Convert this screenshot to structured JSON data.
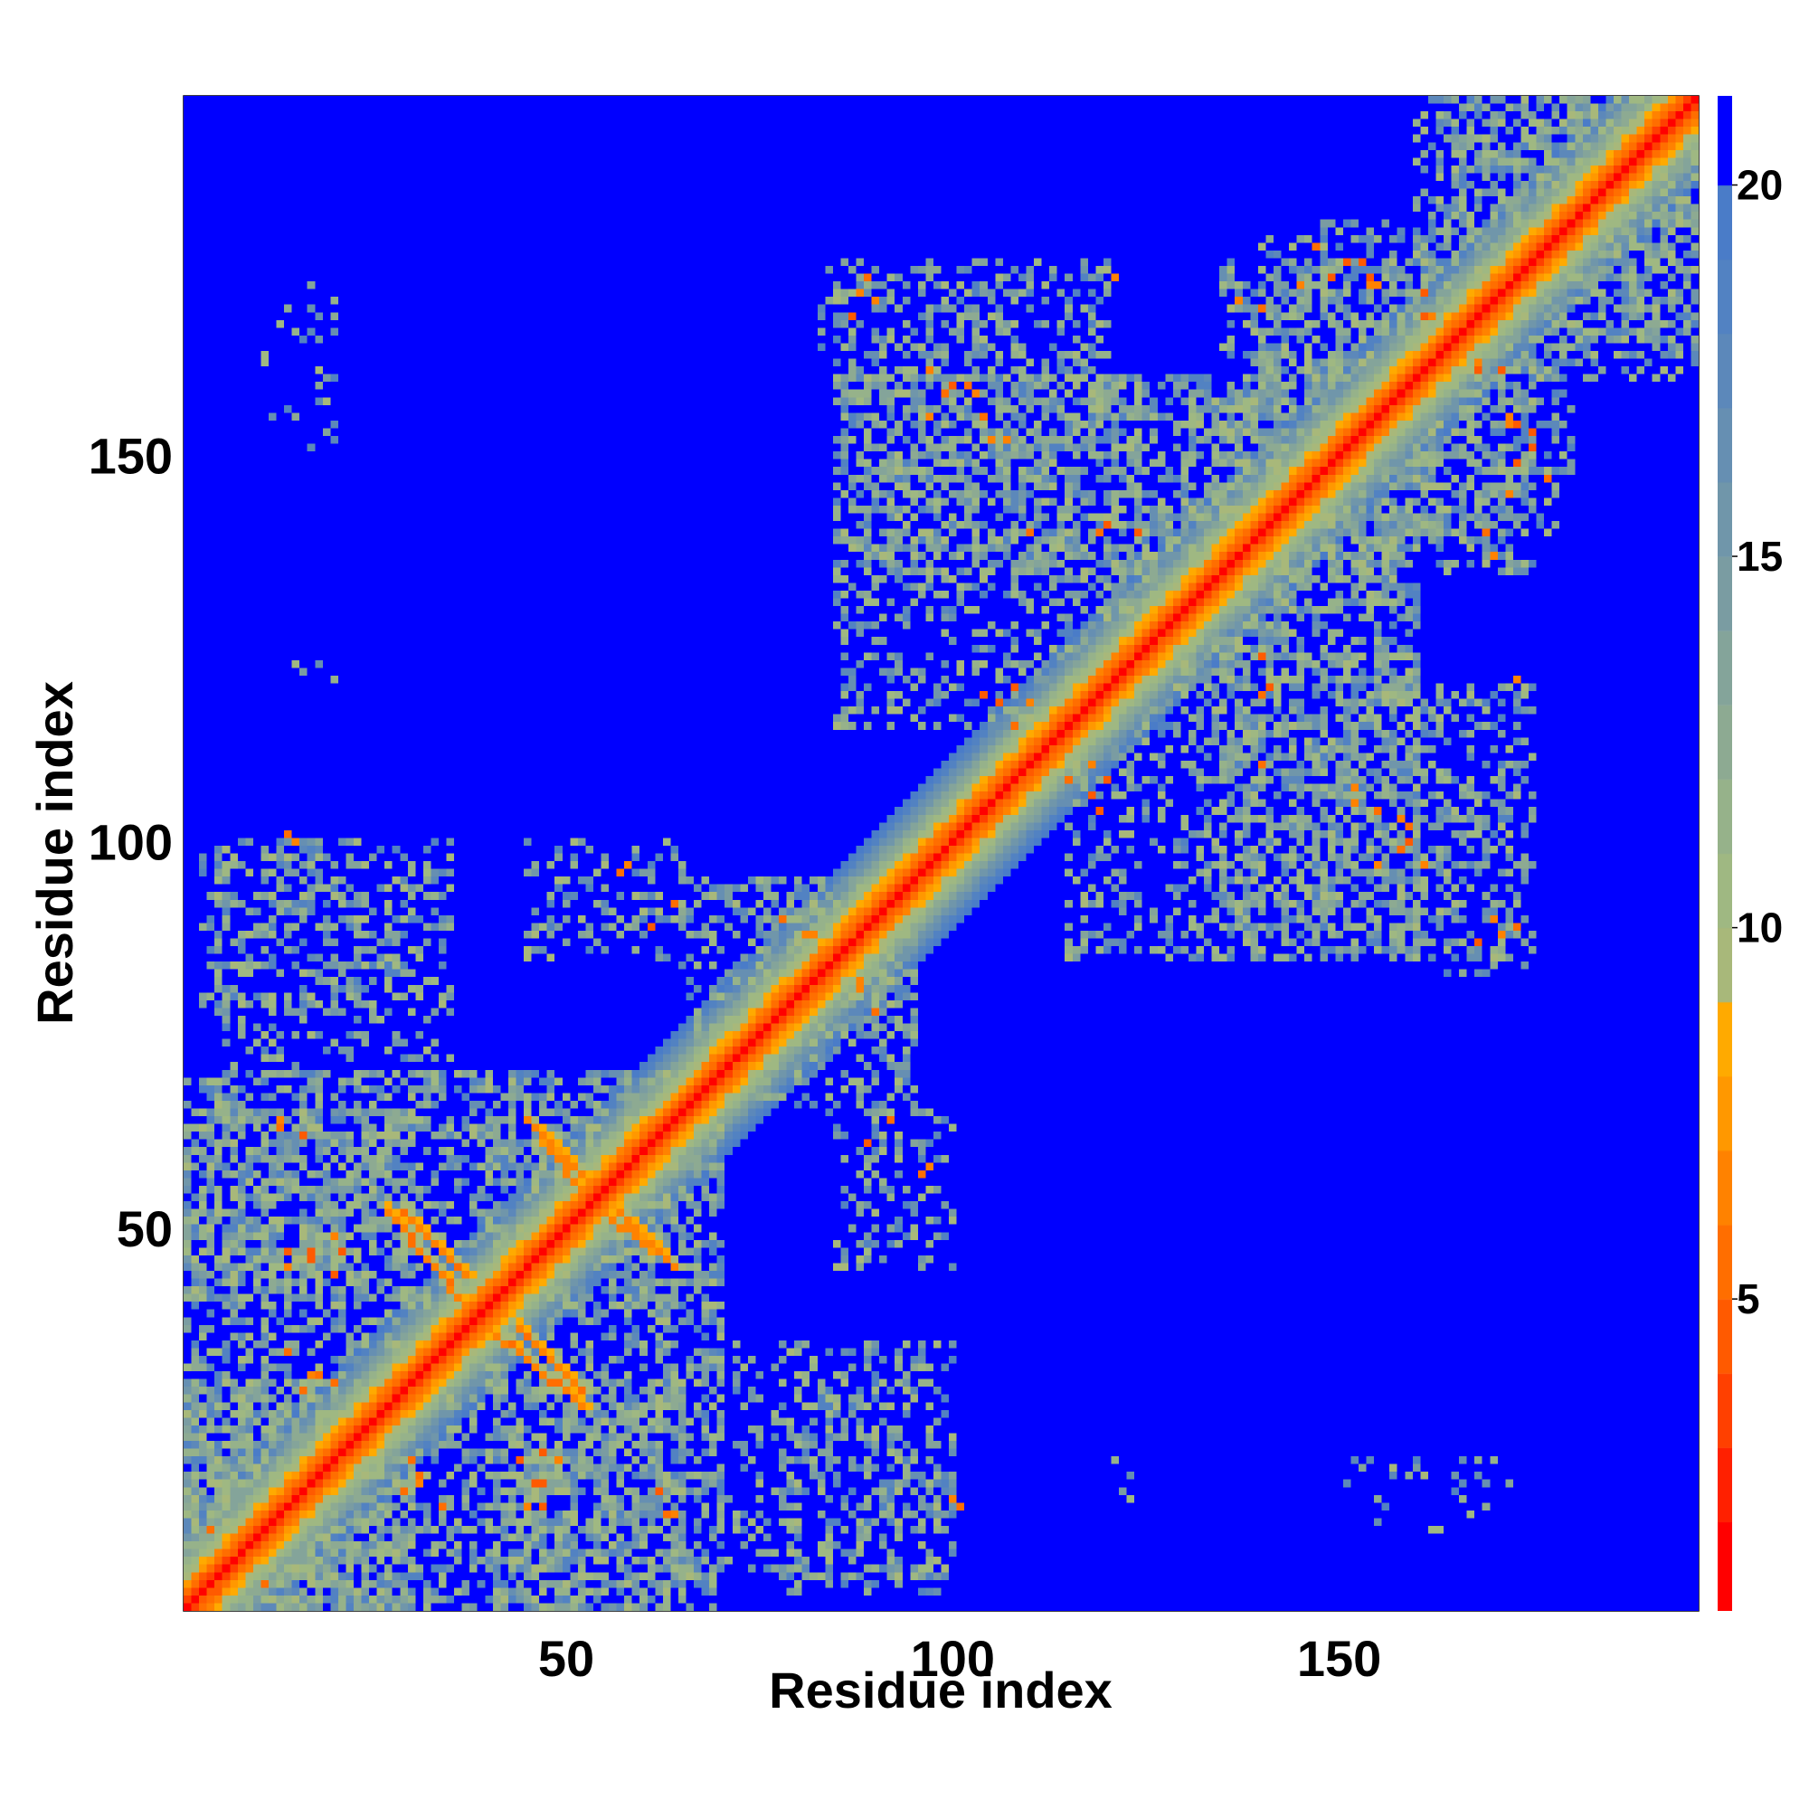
{
  "chart_data": {
    "type": "heatmap",
    "title": "",
    "xlabel": "Residue index",
    "ylabel": "Residue index",
    "xlim": [
      1,
      196
    ],
    "ylim": [
      1,
      196
    ],
    "x_ticks": [
      50,
      100,
      150
    ],
    "y_ticks": [
      50,
      100,
      150
    ],
    "n_residues": 196,
    "colorbar": {
      "range": [
        0.8,
        21.2
      ],
      "ticks": [
        5,
        10,
        15,
        20
      ],
      "saturated_above": 20,
      "bands": [
        {
          "from": 0.8,
          "to": 2.0,
          "color": "#ff0000"
        },
        {
          "from": 2.0,
          "to": 3.0,
          "color": "#ff2000"
        },
        {
          "from": 3.0,
          "to": 4.0,
          "color": "#ff4000"
        },
        {
          "from": 4.0,
          "to": 5.0,
          "color": "#ff5a00"
        },
        {
          "from": 5.0,
          "to": 6.0,
          "color": "#ff6e00"
        },
        {
          "from": 6.0,
          "to": 7.0,
          "color": "#ff8200"
        },
        {
          "from": 7.0,
          "to": 8.0,
          "color": "#ff9800"
        },
        {
          "from": 8.0,
          "to": 9.0,
          "color": "#ffaa00"
        },
        {
          "from": 9.0,
          "to": 10.0,
          "color": "#a8b87a"
        },
        {
          "from": 10.0,
          "to": 11.0,
          "color": "#9fb882"
        },
        {
          "from": 11.0,
          "to": 12.0,
          "color": "#96b28a"
        },
        {
          "from": 12.0,
          "to": 13.0,
          "color": "#8daa92"
        },
        {
          "from": 13.0,
          "to": 14.0,
          "color": "#84a49a"
        },
        {
          "from": 14.0,
          "to": 15.0,
          "color": "#7a9ca2"
        },
        {
          "from": 15.0,
          "to": 16.0,
          "color": "#7096aa"
        },
        {
          "from": 16.0,
          "to": 17.0,
          "color": "#668fb2"
        },
        {
          "from": 17.0,
          "to": 18.0,
          "color": "#5c88ba"
        },
        {
          "from": 18.0,
          "to": 19.0,
          "color": "#5282c2"
        },
        {
          "from": 19.0,
          "to": 20.0,
          "color": "#4a7cc8"
        },
        {
          "from": 20.0,
          "to": 21.2,
          "color": "#0000ff"
        }
      ]
    },
    "diagonal_profile": [
      {
        "offset": 0,
        "value": 1.0
      },
      {
        "offset": 1,
        "value": 3.8
      },
      {
        "offset": 2,
        "value": 5.6
      },
      {
        "offset": 3,
        "value": 7.0
      },
      {
        "offset": 4,
        "value": 9.0
      },
      {
        "offset": 5,
        "value": 10.5
      },
      {
        "offset": 6,
        "value": 12.0
      },
      {
        "offset": 7,
        "value": 13.6
      },
      {
        "offset": 8,
        "value": 15.2
      },
      {
        "offset": 9,
        "value": 16.8
      },
      {
        "offset": 10,
        "value": 18.4
      },
      {
        "offset": 11,
        "value": 19.6
      }
    ],
    "contact_regions": [
      {
        "x": [
          1,
          30
        ],
        "y": [
          1,
          30
        ],
        "density": 0.55
      },
      {
        "x": [
          1,
          40
        ],
        "y": [
          40,
          70
        ],
        "density": 0.45
      },
      {
        "x": [
          30,
          65
        ],
        "y": [
          1,
          30
        ],
        "density": 0.45
      },
      {
        "x": [
          40,
          70
        ],
        "y": [
          40,
          70
        ],
        "density": 0.4
      },
      {
        "x": [
          3,
          25
        ],
        "y": [
          75,
          100
        ],
        "density": 0.25
      },
      {
        "x": [
          27,
          35
        ],
        "y": [
          80,
          97
        ],
        "density": 0.25
      },
      {
        "x": [
          45,
          63
        ],
        "y": [
          88,
          100
        ],
        "density": 0.15
      },
      {
        "x": [
          70,
          100
        ],
        "y": [
          5,
          35
        ],
        "density": 0.25
      },
      {
        "x": [
          85,
          100
        ],
        "y": [
          45,
          65
        ],
        "density": 0.15
      },
      {
        "x": [
          65,
          95
        ],
        "y": [
          75,
          95
        ],
        "density": 0.35
      },
      {
        "x": [
          85,
          115
        ],
        "y": [
          115,
          160
        ],
        "density": 0.35
      },
      {
        "x": [
          115,
          145
        ],
        "y": [
          120,
          160
        ],
        "density": 0.35
      },
      {
        "x": [
          83,
          120
        ],
        "y": [
          160,
          175
        ],
        "density": 0.25
      },
      {
        "x": [
          135,
          160
        ],
        "y": [
          130,
          175
        ],
        "density": 0.4
      },
      {
        "x": [
          135,
          160
        ],
        "y": [
          85,
          125
        ],
        "density": 0.35
      },
      {
        "x": [
          160,
          175
        ],
        "y": [
          85,
          120
        ],
        "density": 0.25
      },
      {
        "x": [
          160,
          180
        ],
        "y": [
          140,
          165
        ],
        "density": 0.35
      },
      {
        "x": [
          160,
          196
        ],
        "y": [
          165,
          196
        ],
        "density": 0.45
      },
      {
        "x": [
          10,
          20
        ],
        "y": [
          155,
          172
        ],
        "density": 0.1
      },
      {
        "x": [
          150,
          170
        ],
        "y": [
          15,
          20
        ],
        "density": 0.1
      },
      {
        "x": [
          120,
          125
        ],
        "y": [
          15,
          20
        ],
        "density": 0.1
      }
    ],
    "antiparallel_strands": [
      {
        "x": [
          29,
          37
        ],
        "y": [
          52,
          44
        ],
        "value": 5.5
      },
      {
        "x": [
          40,
          52
        ],
        "y": [
          37,
          27
        ],
        "value": 5.5
      },
      {
        "x": [
          45,
          52
        ],
        "y": [
          64,
          57
        ],
        "value": 6.0
      },
      {
        "x": [
          55,
          64
        ],
        "y": [
          52,
          45
        ],
        "value": 6.0
      }
    ],
    "close_contacts": [
      [
        13,
        64
      ],
      [
        14,
        47
      ],
      [
        17,
        47
      ],
      [
        20,
        44
      ],
      [
        21,
        47
      ],
      [
        14,
        34
      ],
      [
        17,
        31
      ],
      [
        16,
        29
      ],
      [
        25,
        22
      ],
      [
        30,
        20
      ],
      [
        31,
        18
      ],
      [
        46,
        17
      ],
      [
        45,
        14
      ],
      [
        49,
        20
      ],
      [
        62,
        16
      ],
      [
        63,
        13
      ],
      [
        4,
        11
      ],
      [
        5,
        7
      ],
      [
        3,
        5
      ],
      [
        15,
        100
      ],
      [
        57,
        96
      ],
      [
        58,
        97
      ],
      [
        89,
        61
      ],
      [
        92,
        64
      ],
      [
        90,
        170
      ],
      [
        89,
        173
      ],
      [
        97,
        161
      ],
      [
        102,
        159
      ],
      [
        104,
        155
      ],
      [
        105,
        152
      ],
      [
        110,
        140
      ],
      [
        119,
        140
      ],
      [
        121,
        173
      ],
      [
        145,
        172
      ],
      [
        147,
        177
      ],
      [
        149,
        173
      ],
      [
        153,
        175
      ],
      [
        154,
        172
      ],
      [
        155,
        172
      ],
      [
        161,
        168
      ],
      [
        165,
        165
      ],
      [
        168,
        162
      ],
      [
        171,
        161
      ],
      [
        173,
        154
      ],
      [
        175,
        151
      ],
      [
        169,
        140
      ],
      [
        170,
        137
      ],
      [
        158,
        103
      ],
      [
        158,
        99
      ],
      [
        159,
        100
      ],
      [
        155,
        97
      ],
      [
        152,
        107
      ],
      [
        141,
        120
      ],
      [
        140,
        124
      ],
      [
        108,
        120
      ],
      [
        110,
        118
      ],
      [
        115,
        108
      ],
      [
        118,
        106
      ],
      [
        119,
        104
      ],
      [
        82,
        88
      ],
      [
        85,
        85
      ],
      [
        88,
        81
      ],
      [
        90,
        78
      ],
      [
        101,
        14
      ],
      [
        168,
        87
      ],
      [
        171,
        88
      ]
    ]
  }
}
